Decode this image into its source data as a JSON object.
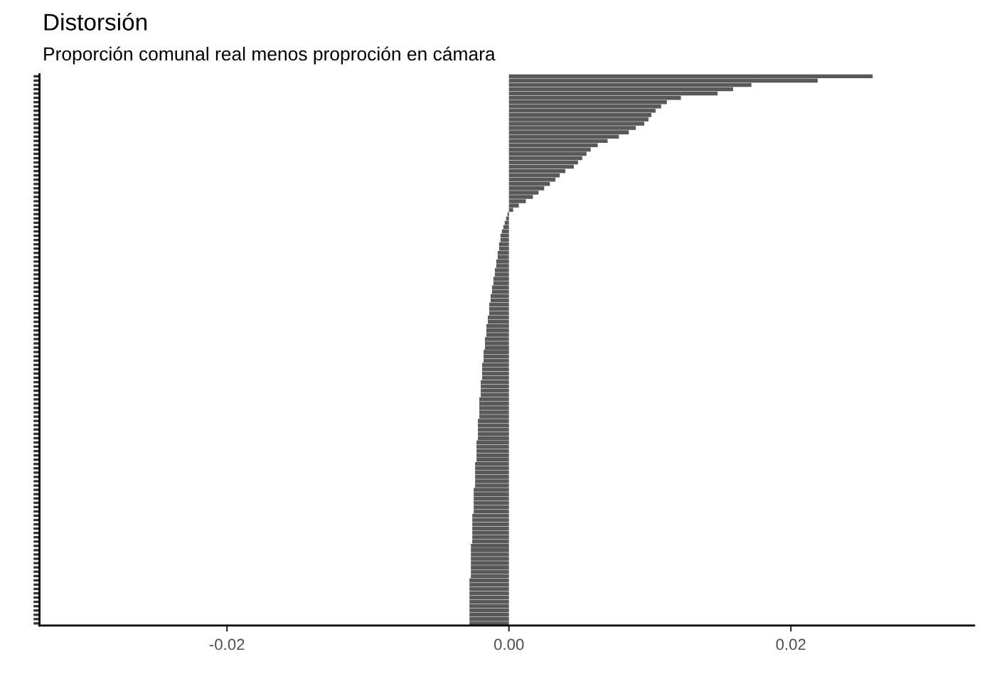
{
  "chart_data": {
    "type": "bar",
    "orientation": "horizontal",
    "title": "Distorsión",
    "subtitle": "Proporción comunal real menos proproción en cámara",
    "categories": [
      null,
      null,
      null,
      null,
      null,
      null,
      null,
      null,
      null,
      null,
      null,
      null,
      null,
      null,
      null,
      null,
      null,
      null,
      null,
      null,
      null,
      null,
      null,
      null,
      null,
      null,
      null,
      null,
      null,
      null,
      null,
      null,
      null,
      null,
      null,
      null,
      null,
      null,
      null,
      null,
      null,
      null,
      null,
      null,
      null,
      null,
      null,
      null,
      null,
      null,
      null,
      null,
      null,
      null,
      null,
      null,
      null,
      null,
      null,
      null,
      null,
      null,
      null,
      null,
      null,
      null,
      null,
      null,
      null,
      null,
      null,
      null,
      null,
      null,
      null,
      null,
      null,
      null,
      null,
      null,
      null,
      null,
      null,
      null,
      null,
      null,
      null,
      null,
      null,
      null,
      null,
      null,
      null,
      null,
      null,
      null,
      null,
      null,
      null,
      null,
      null,
      null,
      null,
      null,
      null,
      null,
      null,
      null,
      null,
      null,
      null,
      null,
      null,
      null,
      null,
      null,
      null,
      null,
      null,
      null,
      null,
      null,
      null,
      null,
      null,
      null,
      null,
      null
    ],
    "values": [
      0.0258,
      0.0219,
      0.0172,
      0.0159,
      0.0148,
      0.0122,
      0.0112,
      0.0108,
      0.0104,
      0.0101,
      0.0099,
      0.0096,
      0.009,
      0.0085,
      0.0078,
      0.007,
      0.0063,
      0.0058,
      0.0055,
      0.0052,
      0.0049,
      0.0046,
      0.004,
      0.0036,
      0.0033,
      0.0029,
      0.0025,
      0.0021,
      0.0017,
      0.0012,
      0.0007,
      0.0003,
      -0.0001,
      -0.0002,
      -0.0003,
      -0.0004,
      -0.0005,
      -0.0006,
      -0.0006,
      -0.0007,
      -0.0007,
      -0.0008,
      -0.0008,
      -0.0009,
      -0.0009,
      -0.001,
      -0.001,
      -0.0011,
      -0.0011,
      -0.0012,
      -0.0012,
      -0.0013,
      -0.0013,
      -0.0014,
      -0.0014,
      -0.0014,
      -0.0015,
      -0.0015,
      -0.0016,
      -0.0016,
      -0.0016,
      -0.0017,
      -0.0017,
      -0.0017,
      -0.0018,
      -0.0018,
      -0.0018,
      -0.0019,
      -0.0019,
      -0.0019,
      -0.0019,
      -0.002,
      -0.002,
      -0.002,
      -0.002,
      -0.0021,
      -0.0021,
      -0.0021,
      -0.0021,
      -0.0021,
      -0.0022,
      -0.0022,
      -0.0022,
      -0.0022,
      -0.0022,
      -0.0023,
      -0.0023,
      -0.0023,
      -0.0023,
      -0.0023,
      -0.0024,
      -0.0024,
      -0.0024,
      -0.0024,
      -0.0024,
      -0.0024,
      -0.0025,
      -0.0025,
      -0.0025,
      -0.0025,
      -0.0025,
      -0.0025,
      -0.0026,
      -0.0026,
      -0.0026,
      -0.0026,
      -0.0026,
      -0.0026,
      -0.0026,
      -0.0027,
      -0.0027,
      -0.0027,
      -0.0027,
      -0.0027,
      -0.0027,
      -0.0027,
      -0.0027,
      -0.0028,
      -0.0028,
      -0.0028,
      -0.0028,
      -0.0028,
      -0.0028,
      -0.0028,
      -0.0028,
      -0.0028,
      -0.0028,
      -0.0028
    ],
    "color": "#595959",
    "xlim": [
      -0.0333,
      0.033
    ],
    "xticks": [
      {
        "value": -0.02,
        "label": "-0.02"
      },
      {
        "value": 0,
        "label": "0.00"
      },
      {
        "value": 0.02,
        "label": "0.02"
      }
    ],
    "grid": false
  }
}
